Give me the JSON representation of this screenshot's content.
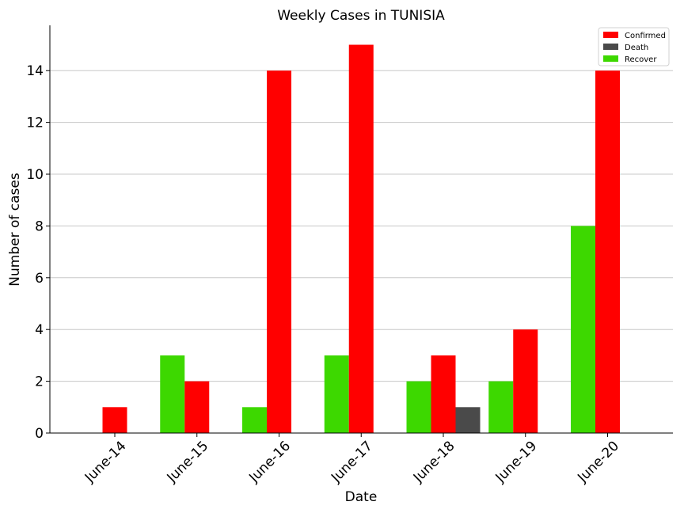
{
  "chart_data": {
    "type": "bar",
    "title": "Weekly Cases in TUNISIA",
    "xlabel": "Date",
    "ylabel": "Number of cases",
    "categories": [
      "June-14",
      "June-15",
      "June-16",
      "June-17",
      "June-18",
      "June-19",
      "June-20"
    ],
    "series": [
      {
        "name": "Confirmed",
        "color": "#ff0000",
        "values": [
          1,
          2,
          14,
          15,
          3,
          4,
          14
        ]
      },
      {
        "name": "Death",
        "color": "#4a4a4a",
        "values": [
          0,
          0,
          0,
          0,
          1,
          0,
          0
        ]
      },
      {
        "name": "Recover",
        "color": "#3dd800",
        "values": [
          0,
          3,
          1,
          3,
          2,
          2,
          8
        ]
      }
    ],
    "ylim": [
      0,
      15.75
    ],
    "yticks": [
      0,
      2,
      4,
      6,
      8,
      10,
      12,
      14
    ],
    "grid": "horizontal",
    "legend_position": "top-right"
  }
}
